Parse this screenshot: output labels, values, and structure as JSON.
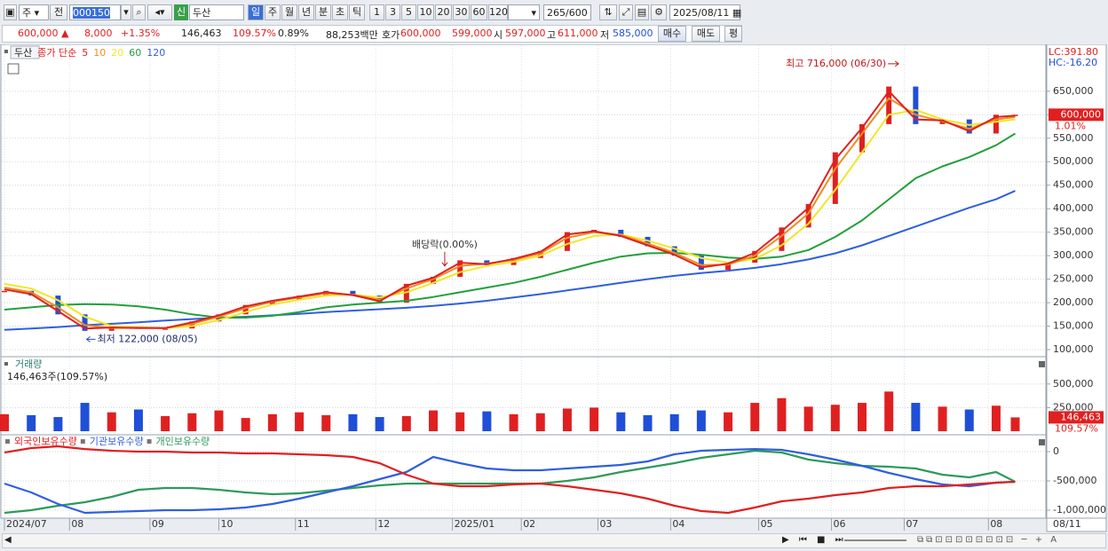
{
  "toolbar": {
    "market": "주",
    "prev": "전",
    "code": "000150",
    "new_label": "신",
    "name": "두산",
    "periods": [
      "일",
      "주",
      "월",
      "년",
      "분",
      "초",
      "틱"
    ],
    "intervals": [
      "1",
      "3",
      "5",
      "10",
      "20",
      "30",
      "60",
      "120"
    ],
    "count": "265",
    "max": "/600",
    "date": "2025/08/11"
  },
  "quote": {
    "price": "600,000 ▲",
    "change": "8,000",
    "change_pct": "+1.35%",
    "volume": "146,463",
    "volume_ratio": "109.57%",
    "turnover": "0.89%",
    "amount": "88,253백만",
    "ask_label": "호가",
    "ask": "600,000",
    "bid": "599,000",
    "open_label": "시",
    "open": "597,000",
    "high_label": "고",
    "high": "611,000",
    "low_label": "저",
    "low": "585,000",
    "buy": "매수",
    "sell": "매도",
    "eval": "평"
  },
  "chart_data": [
    {
      "type": "candlestick",
      "title": "두산",
      "subtitle": "종가 단순",
      "up_color": "#e02020",
      "down_color": "#1f4fd8",
      "x": [
        0,
        7,
        14,
        21,
        28,
        35,
        42,
        49,
        56,
        63,
        70,
        77,
        84,
        91,
        98,
        105,
        112,
        119,
        126,
        133,
        140,
        147,
        154,
        161,
        168,
        175,
        182,
        189,
        196,
        203,
        210,
        217,
        224,
        231,
        238,
        245,
        252,
        259,
        264
      ],
      "values": [
        225000,
        215000,
        175000,
        140000,
        148000,
        145000,
        145000,
        160000,
        175000,
        195000,
        205000,
        215000,
        225000,
        215000,
        200000,
        240000,
        255000,
        290000,
        280000,
        295000,
        310000,
        350000,
        355000,
        340000,
        320000,
        300000,
        270000,
        285000,
        310000,
        360000,
        410000,
        520000,
        580000,
        660000,
        580000,
        590000,
        560000,
        600000,
        600000
      ],
      "series": [
        {
          "name": "5",
          "color": "#e02020",
          "values": [
            228000,
            218000,
            182000,
            145000,
            147000,
            146000,
            146000,
            158000,
            173000,
            192000,
            204000,
            213000,
            222000,
            216000,
            203000,
            236000,
            253000,
            285000,
            282000,
            293000,
            308000,
            345000,
            352000,
            342000,
            322000,
            302000,
            275000,
            283000,
            306000,
            352000,
            402000,
            505000,
            572000,
            650000,
            590000,
            588000,
            565000,
            595000,
            598000
          ]
        },
        {
          "name": "10",
          "color": "#f08c1e",
          "values": [
            232000,
            222000,
            190000,
            152000,
            146000,
            147000,
            146000,
            155000,
            170000,
            188000,
            202000,
            211000,
            220000,
            217000,
            206000,
            230000,
            250000,
            278000,
            283000,
            291000,
            305000,
            338000,
            350000,
            344000,
            326000,
            306000,
            280000,
            281000,
            300000,
            342000,
            390000,
            485000,
            560000,
            635000,
            600000,
            586000,
            570000,
            590000,
            595000
          ]
        },
        {
          "name": "20",
          "color": "#f2e628",
          "values": [
            240000,
            230000,
            205000,
            170000,
            150000,
            148000,
            146000,
            150000,
            163000,
            180000,
            196000,
            206000,
            215000,
            217000,
            211000,
            222000,
            242000,
            265000,
            278000,
            287000,
            300000,
            325000,
            342000,
            345000,
            332000,
            315000,
            295000,
            285000,
            293000,
            322000,
            368000,
            440000,
            520000,
            600000,
            610000,
            590000,
            578000,
            585000,
            590000
          ]
        },
        {
          "name": "60",
          "color": "#22a03a",
          "values": [
            185000,
            190000,
            195000,
            197000,
            196000,
            192000,
            185000,
            175000,
            168000,
            168000,
            172000,
            180000,
            190000,
            196000,
            200000,
            204000,
            212000,
            222000,
            232000,
            242000,
            255000,
            270000,
            285000,
            298000,
            305000,
            306000,
            302000,
            296000,
            293000,
            298000,
            312000,
            340000,
            375000,
            420000,
            465000,
            490000,
            510000,
            535000,
            560000
          ]
        },
        {
          "name": "120",
          "color": "#2f5fe0",
          "values": [
            142000,
            145000,
            148000,
            152000,
            155000,
            158000,
            162000,
            165000,
            168000,
            170000,
            173000,
            176000,
            180000,
            183000,
            186000,
            189000,
            193000,
            198000,
            204000,
            211000,
            218000,
            226000,
            234000,
            242000,
            250000,
            257000,
            263000,
            268000,
            274000,
            282000,
            292000,
            305000,
            322000,
            342000,
            362000,
            382000,
            402000,
            420000,
            438000
          ]
        }
      ],
      "ylim": [
        88700,
        746000
      ],
      "yticks": [
        {
          "value": 100000,
          "label": "100,000"
        },
        {
          "value": 150000,
          "label": "150,000"
        },
        {
          "value": 200000,
          "label": "200,000"
        },
        {
          "value": 250000,
          "label": "250,000"
        },
        {
          "value": 300000,
          "label": "300,000"
        },
        {
          "value": 350000,
          "label": "350,000"
        },
        {
          "value": 400000,
          "label": "400,000"
        },
        {
          "value": 450000,
          "label": "450,000"
        },
        {
          "value": 500000,
          "label": "500,000"
        },
        {
          "value": 550000,
          "label": "550,000"
        },
        {
          "value": 600000,
          "label": "600,000"
        },
        {
          "value": 650000,
          "label": "650,000"
        }
      ],
      "annotations": [
        {
          "text": "최고 716,000 (06/30)",
          "x": 234,
          "y": 716000
        },
        {
          "text": "최저 122,000 (08/05)",
          "x": 21,
          "y": 122000
        },
        {
          "text": "배당락(0.00%)",
          "x": 115,
          "y": 278000
        }
      ],
      "lc": "LC:391.80",
      "hc": "HC:-16.20",
      "current_label": "600,000",
      "current_pct": "1.01%"
    },
    {
      "type": "bar",
      "title": "거래량",
      "subtitle": "146,463주(109.57%)",
      "x": [
        0,
        7,
        14,
        21,
        28,
        35,
        42,
        49,
        56,
        63,
        70,
        77,
        84,
        91,
        98,
        105,
        112,
        119,
        126,
        133,
        140,
        147,
        154,
        161,
        168,
        175,
        182,
        189,
        196,
        203,
        210,
        217,
        224,
        231,
        238,
        245,
        252,
        259,
        264
      ],
      "values": [
        180000,
        170000,
        150000,
        300000,
        200000,
        230000,
        160000,
        190000,
        220000,
        140000,
        180000,
        200000,
        170000,
        180000,
        150000,
        160000,
        220000,
        200000,
        210000,
        180000,
        190000,
        240000,
        250000,
        200000,
        170000,
        180000,
        220000,
        200000,
        300000,
        350000,
        260000,
        280000,
        300000,
        420000,
        300000,
        260000,
        230000,
        270000,
        146463
      ],
      "ylim": [
        0,
        770000
      ],
      "yticks": [
        {
          "value": 250000,
          "label": "250,000"
        },
        {
          "value": 500000,
          "label": "500,000"
        }
      ],
      "current_label": "146,463",
      "current_pct": "109.57%"
    },
    {
      "type": "line",
      "x": [
        0,
        7,
        14,
        21,
        28,
        35,
        42,
        49,
        56,
        63,
        70,
        77,
        84,
        91,
        98,
        105,
        112,
        119,
        126,
        133,
        140,
        147,
        154,
        161,
        168,
        175,
        182,
        189,
        196,
        203,
        210,
        217,
        224,
        231,
        238,
        245,
        252,
        259,
        264
      ],
      "series": [
        {
          "name": "외국인보유수량",
          "color": "#e02020",
          "values": [
            -15000,
            61000,
            91000,
            45000,
            15000,
            0,
            0,
            -15000,
            -15000,
            -30000,
            -30000,
            -45000,
            -61000,
            -91000,
            -197000,
            -394000,
            -545000,
            -591000,
            -591000,
            -561000,
            -545000,
            -591000,
            -652000,
            -712000,
            -803000,
            -924000,
            -1015000,
            -1045000,
            -955000,
            -848000,
            -803000,
            -742000,
            -697000,
            -621000,
            -591000,
            -591000,
            -561000,
            -530000,
            -515000
          ]
        },
        {
          "name": "기관보유수량",
          "color": "#2f5fe0",
          "values": [
            -545000,
            -697000,
            -894000,
            -1045000,
            -1030000,
            -1015000,
            -1000000,
            -1000000,
            -985000,
            -955000,
            -894000,
            -803000,
            -697000,
            -591000,
            -470000,
            -348000,
            -91000,
            -197000,
            -288000,
            -318000,
            -318000,
            -288000,
            -258000,
            -227000,
            -167000,
            -45000,
            15000,
            30000,
            45000,
            30000,
            -45000,
            -136000,
            -242000,
            -364000,
            -470000,
            -561000,
            -591000,
            -530000,
            -515000
          ]
        },
        {
          "name": "개인보유수량",
          "color": "#2e9a5a",
          "values": [
            -1045000,
            -1000000,
            -924000,
            -864000,
            -773000,
            -652000,
            -621000,
            -621000,
            -652000,
            -697000,
            -727000,
            -712000,
            -667000,
            -621000,
            -576000,
            -545000,
            -545000,
            -545000,
            -545000,
            -545000,
            -545000,
            -500000,
            -439000,
            -348000,
            -273000,
            -197000,
            -106000,
            -45000,
            15000,
            -15000,
            -136000,
            -197000,
            -242000,
            -258000,
            -288000,
            -394000,
            -439000,
            -348000,
            -515000
          ]
        }
      ],
      "ylim": [
        -1106000,
        258000
      ],
      "yticks": [
        0,
        {
          "value": -500000,
          "label": "-500,000"
        },
        {
          "value": -1000000,
          "label": "-1,000,000"
        }
      ],
      "xlim": [
        0,
        272
      ],
      "xticks": [
        {
          "value": 0,
          "label": "2024/07"
        },
        {
          "value": 17,
          "label": "08"
        },
        {
          "value": 38,
          "label": "09"
        },
        {
          "value": 56,
          "label": "10"
        },
        {
          "value": 76,
          "label": "11"
        },
        {
          "value": 97,
          "label": "12"
        },
        {
          "value": 117,
          "label": "2025/01"
        },
        {
          "value": 135,
          "label": "02"
        },
        {
          "value": 155,
          "label": "03"
        },
        {
          "value": 174,
          "label": "04"
        },
        {
          "value": 197,
          "label": "05"
        },
        {
          "value": 216,
          "label": "06"
        },
        {
          "value": 235,
          "label": "07"
        },
        {
          "value": 257,
          "label": "08"
        }
      ],
      "x_end_label": "08/11"
    }
  ]
}
